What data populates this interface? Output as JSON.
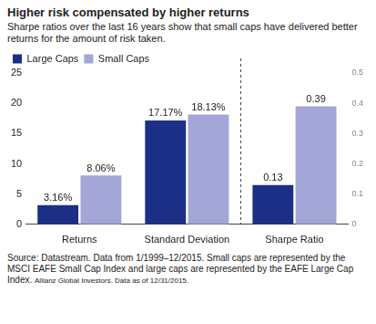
{
  "chart_data": {
    "type": "bar",
    "title": "Higher risk compensated by higher returns",
    "subtitle": "Sharpe ratios over the last 16 years show that small caps have delivered better returns for the amount of risk taken.",
    "source": "Source: Datastream. Data from 1/1999–12/2015. Small caps are represented by the MSCI EAFE Small Cap Index and large caps are represented by the EAFE Large Cap Index.",
    "credit": "Allianz Global Investors. Data as of 12/31/2015.",
    "categories": [
      "Returns",
      "Standard Deviation",
      "Sharpe Ratio"
    ],
    "series": [
      {
        "name": "Large Caps",
        "color": "#1c2f86",
        "values": [
          3.16,
          17.17,
          null
        ],
        "value_labels": [
          "3.16%",
          "17.17%",
          null
        ]
      },
      {
        "name": "Small Caps",
        "color": "#a3a6d6",
        "values": [
          8.06,
          18.13,
          null
        ],
        "value_labels": [
          "8.06%",
          "18.13%",
          null
        ]
      },
      {
        "name": "Large Caps",
        "color": "#1c2f86",
        "values": [
          null,
          null,
          0.13
        ],
        "axis": "y2"
      },
      {
        "name": "Small Caps",
        "color": "#a3a6d6",
        "values": [
          null,
          null,
          0.39
        ],
        "axis": "y2"
      }
    ],
    "ylim": [
      0,
      25
    ],
    "yticks": [
      0,
      5,
      10,
      15,
      20,
      25
    ],
    "y2lim": [
      0,
      0.5
    ],
    "y2ticks": [
      0,
      0.1,
      0.2,
      0.3,
      0.4,
      0.5
    ],
    "grid": false,
    "legend": "upper left",
    "data_labels": true
  }
}
